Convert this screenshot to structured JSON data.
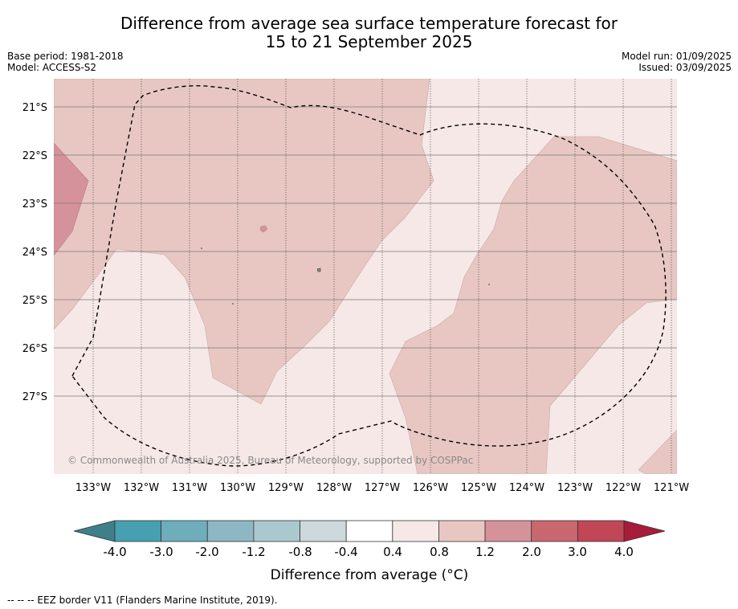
{
  "title": {
    "line1": "Difference from average sea surface temperature forecast for",
    "line2": "15 to 21 September 2025"
  },
  "meta": {
    "base_period": "Base period: 1981-2018",
    "model": "Model: ACCESS-S2",
    "model_run": "Model run: 01/09/2025",
    "issued": "Issued: 03/09/2025"
  },
  "map": {
    "lon_ticks": [
      "133°W",
      "132°W",
      "131°W",
      "130°W",
      "129°W",
      "128°W",
      "127°W",
      "126°W",
      "125°W",
      "124°W",
      "123°W",
      "122°W",
      "121°W"
    ],
    "lat_ticks": [
      "21°S",
      "22°S",
      "23°S",
      "24°S",
      "25°S",
      "26°S",
      "27°S"
    ],
    "copyright": "© Commonwealth of Australia 2025, Bureau of Meteorology, supported by COSPPac",
    "colors": {
      "bin_0.4_0.8": "#f5e8e6",
      "bin_0.8_1.2": "#e8c7c2",
      "bin_1.2_2.0": "#d6929a",
      "eez_line": "#000000"
    }
  },
  "colorbar": {
    "tick_labels": [
      "-4.0",
      "-3.0",
      "-2.0",
      "-1.2",
      "-0.8",
      "-0.4",
      "0.4",
      "0.8",
      "1.2",
      "2.0",
      "3.0",
      "4.0"
    ],
    "colors": [
      "#3f7f8a",
      "#47a0b1",
      "#6eaebb",
      "#8db7c3",
      "#aac9ce",
      "#cdd9dc",
      "#ffffff",
      "#f5e8e6",
      "#e8c7c2",
      "#d6929a",
      "#c9676f",
      "#c14656",
      "#a71c3a"
    ],
    "label": "Difference from average (°C)"
  },
  "footnote": "--  --  -- EEZ border V11 (Flanders Marine Institute, 2019)."
}
